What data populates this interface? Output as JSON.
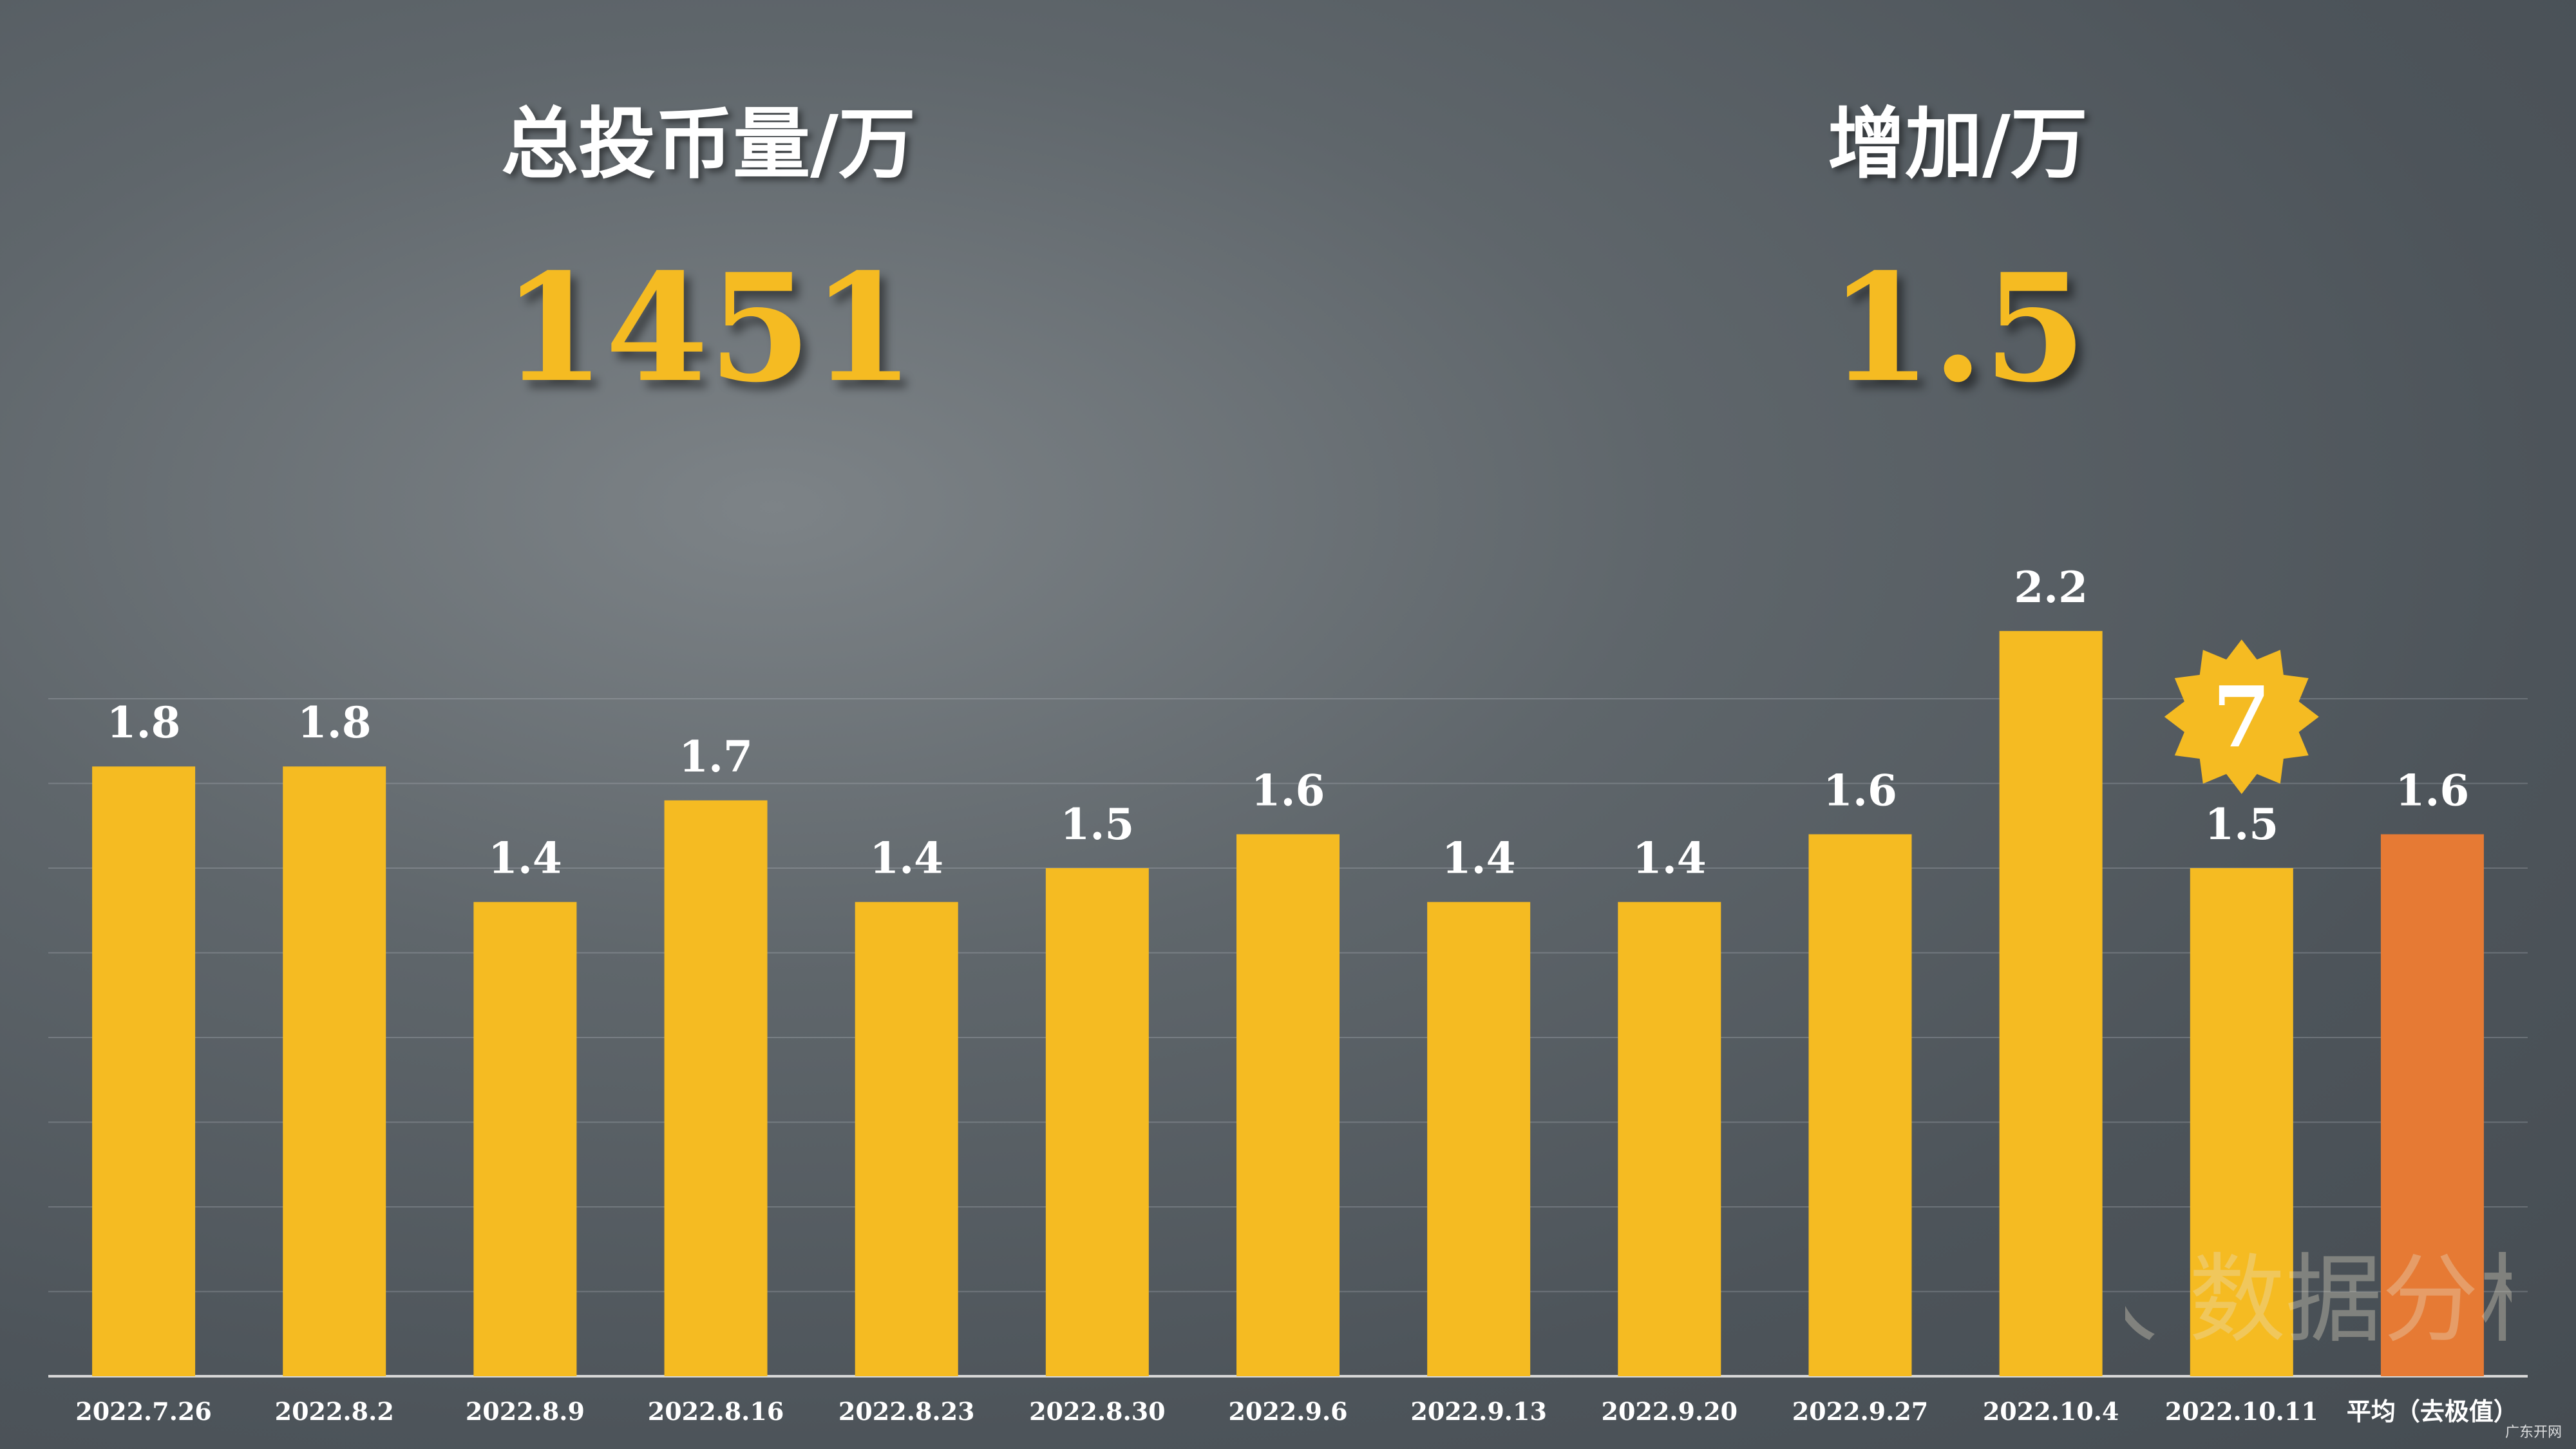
{
  "stats": {
    "total": {
      "title": "总投币量/万",
      "value": "1451"
    },
    "increase": {
      "title": "增加/万",
      "value": "1.5"
    }
  },
  "badge": {
    "text": "7",
    "color": "#f5bb22"
  },
  "watermark": {
    "text": "人 数据分析"
  },
  "corner_mark": "广东开网",
  "colors": {
    "bar": "#f5bb22",
    "highlight_bar": "#e67a34",
    "text": "#ffffff"
  },
  "chart_data": {
    "type": "bar",
    "categories": [
      "2022.7.26",
      "2022.8.2",
      "2022.8.9",
      "2022.8.16",
      "2022.8.23",
      "2022.8.30",
      "2022.9.6",
      "2022.9.13",
      "2022.9.20",
      "2022.9.27",
      "2022.10.4",
      "2022.10.11",
      "平均（去极值）"
    ],
    "values": [
      1.8,
      1.8,
      1.4,
      1.7,
      1.4,
      1.5,
      1.6,
      1.4,
      1.4,
      1.6,
      2.2,
      1.5,
      1.6
    ],
    "value_labels": [
      "1.8",
      "1.8",
      "1.4",
      "1.7",
      "1.4",
      "1.5",
      "1.6",
      "1.4",
      "1.4",
      "1.6",
      "2.2",
      "1.5",
      "1.6"
    ],
    "highlight_index": 12,
    "badge_index": 11,
    "ylim": [
      0,
      2.5
    ],
    "grid": true,
    "legend": "none"
  }
}
